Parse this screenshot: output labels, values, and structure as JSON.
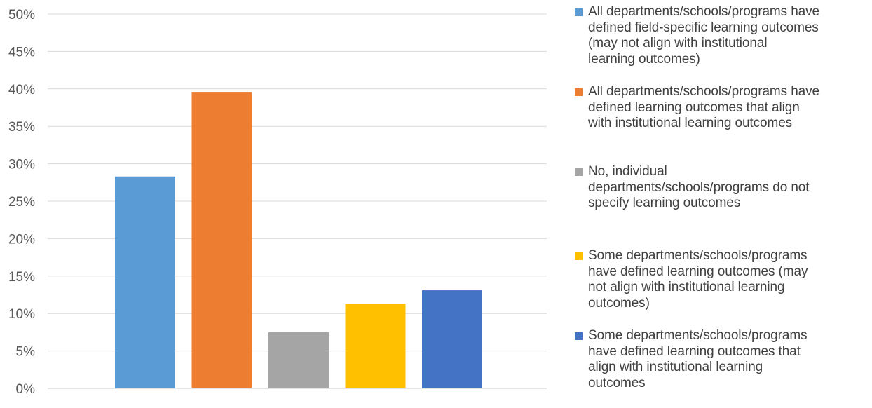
{
  "chart_data": {
    "type": "bar",
    "title": "",
    "xlabel": "",
    "ylabel": "",
    "ylim": [
      0,
      0.5
    ],
    "y_ticks": [
      "0%",
      "5%",
      "10%",
      "15%",
      "20%",
      "25%",
      "30%",
      "35%",
      "40%",
      "45%",
      "50%"
    ],
    "grid": true,
    "legend_position": "right",
    "series": [
      {
        "name": "All departments/schools/programs have defined field-specific learning outcomes (may not align with institutional learning outcomes)",
        "value": 0.283,
        "color": "#5B9BD5"
      },
      {
        "name": "All departments/schools/programs have defined learning outcomes that align with institutional learning outcomes",
        "value": 0.396,
        "color": "#ED7D31"
      },
      {
        "name": "No, individual departments/schools/programs do not specify learning outcomes",
        "value": 0.075,
        "color": "#A5A5A5"
      },
      {
        "name": "Some departments/schools/programs have defined learning outcomes (may not align with institutional learning outcomes)",
        "value": 0.113,
        "color": "#FFC000"
      },
      {
        "name": "Some departments/schools/programs have defined learning outcomes that align with institutional learning outcomes",
        "value": 0.131,
        "color": "#4472C4"
      }
    ]
  },
  "legend": {
    "items": [
      {
        "line1": "All departments/schools/programs have",
        "line2": "defined field-specific learning outcomes",
        "line3": "(may not align with institutional",
        "line4": "learning outcomes)"
      },
      {
        "line1": "All departments/schools/programs have",
        "line2": "defined learning outcomes that align",
        "line3": "with institutional learning outcomes"
      },
      {
        "line1": "No, individual",
        "line2": "departments/schools/programs do not",
        "line3": "specify learning outcomes"
      },
      {
        "line1": "Some departments/schools/programs",
        "line2": "have defined learning outcomes (may",
        "line3": "not align with institutional learning",
        "line4": "outcomes)"
      },
      {
        "line1": "Some departments/schools/programs",
        "line2": "have defined learning outcomes that",
        "line3": "align with institutional learning",
        "line4": "outcomes"
      }
    ]
  }
}
